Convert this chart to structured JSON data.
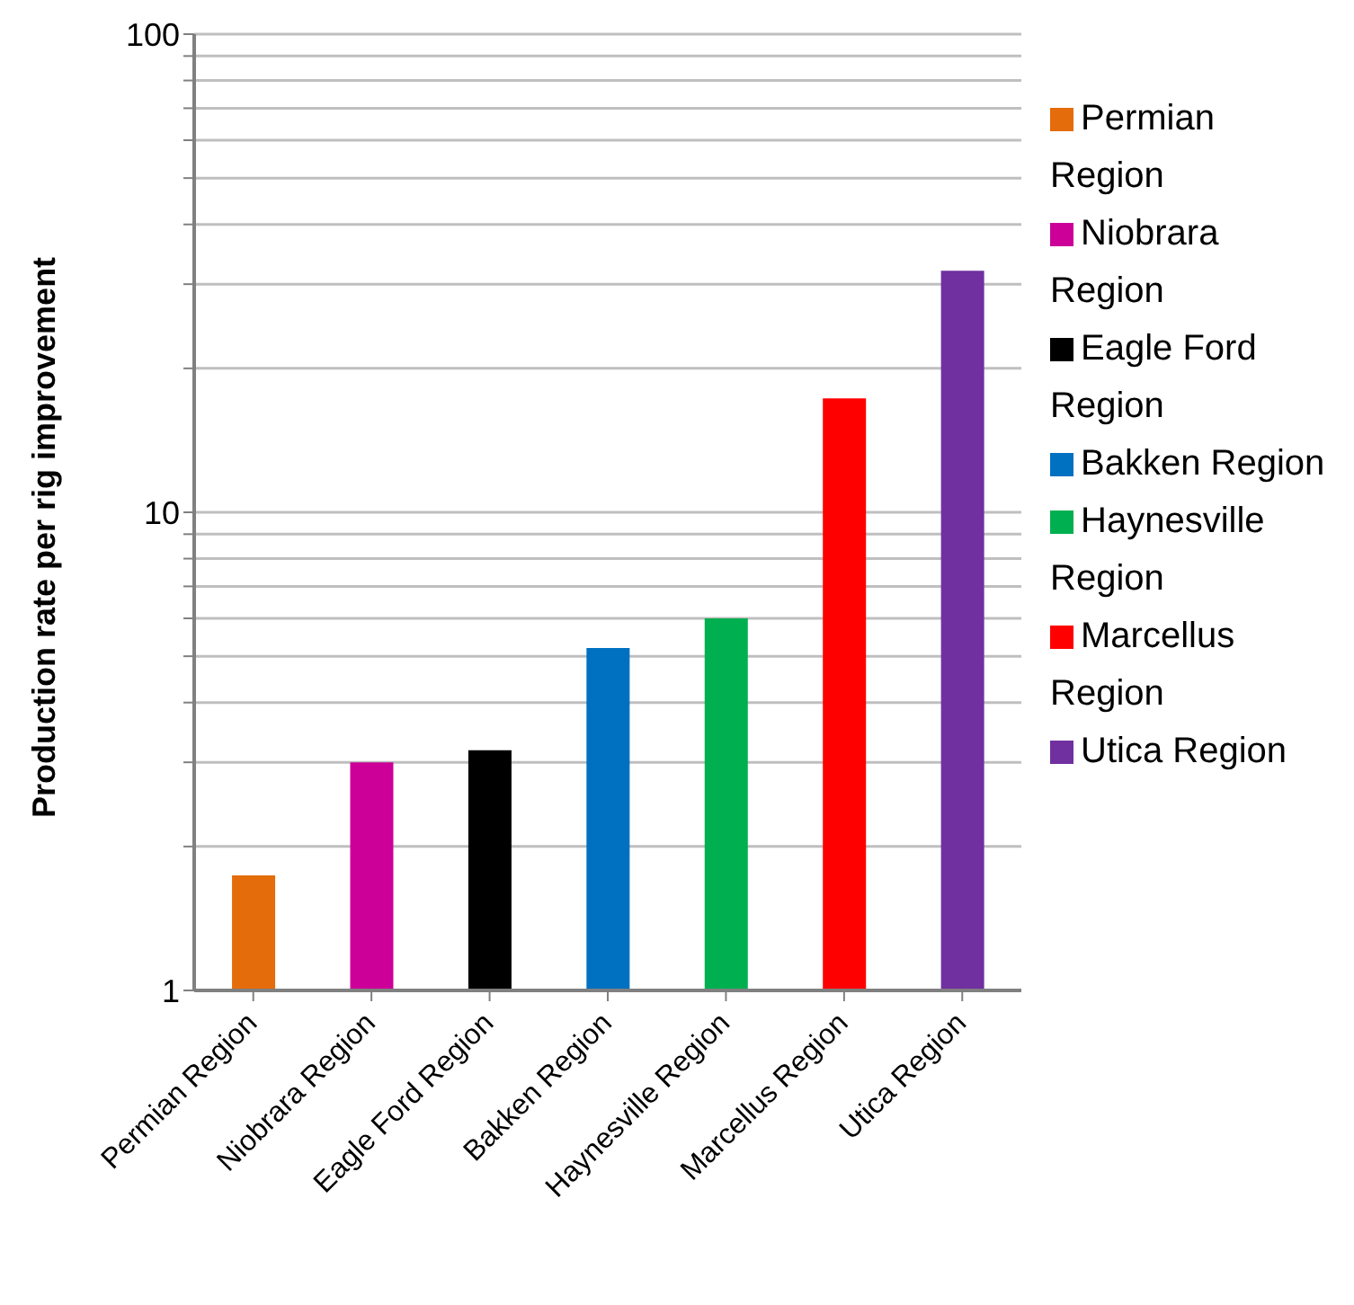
{
  "chart_data": {
    "type": "bar",
    "ylabel": "Production rate per rig  improvement",
    "categories": [
      "Permian Region",
      "Niobrara Region",
      "Eagle Ford Region",
      "Bakken Region",
      "Haynesville Region",
      "Marcellus Region",
      "Utica Region"
    ],
    "stacked": true,
    "series": [
      {
        "name": "Permian Region",
        "color": "#e46c0a",
        "values": [
          1.74,
          null,
          null,
          null,
          null,
          null,
          null
        ]
      },
      {
        "name": "Niobrara Region",
        "color": "#cc0099",
        "values": [
          null,
          3.0,
          null,
          null,
          null,
          null,
          null
        ]
      },
      {
        "name": "Eagle Ford Region",
        "color": "#000000",
        "values": [
          null,
          null,
          3.18,
          null,
          null,
          null,
          null
        ]
      },
      {
        "name": "Bakken Region",
        "color": "#0070c0",
        "values": [
          null,
          null,
          null,
          5.2,
          null,
          null,
          null
        ]
      },
      {
        "name": "Haynesville Region",
        "color": "#00b050",
        "values": [
          null,
          null,
          null,
          null,
          6.0,
          null,
          null
        ]
      },
      {
        "name": "Marcellus Region",
        "color": "#ff0000",
        "values": [
          null,
          null,
          null,
          null,
          null,
          17.3,
          null
        ]
      },
      {
        "name": "Utica Region",
        "color": "#7030a0",
        "values": [
          null,
          null,
          null,
          null,
          null,
          null,
          32
        ]
      }
    ],
    "log": "y",
    "ylim": [
      1,
      100
    ],
    "yticks": [
      1,
      {
        "value": 2,
        "label": null
      },
      {
        "value": 3,
        "label": null
      },
      {
        "value": 4,
        "label": null
      },
      {
        "value": 5,
        "label": null
      },
      {
        "value": 6,
        "label": null
      },
      {
        "value": 7,
        "label": null
      },
      {
        "value": 8,
        "label": null
      },
      {
        "value": 9,
        "label": null
      },
      10,
      {
        "value": 20,
        "label": null
      },
      {
        "value": 30,
        "label": null
      },
      {
        "value": 40,
        "label": null
      },
      {
        "value": 50,
        "label": null
      },
      {
        "value": 60,
        "label": null
      },
      {
        "value": 70,
        "label": null
      },
      {
        "value": 80,
        "label": null
      },
      {
        "value": 90,
        "label": null
      },
      100
    ],
    "grid": "y",
    "legend": "right"
  }
}
